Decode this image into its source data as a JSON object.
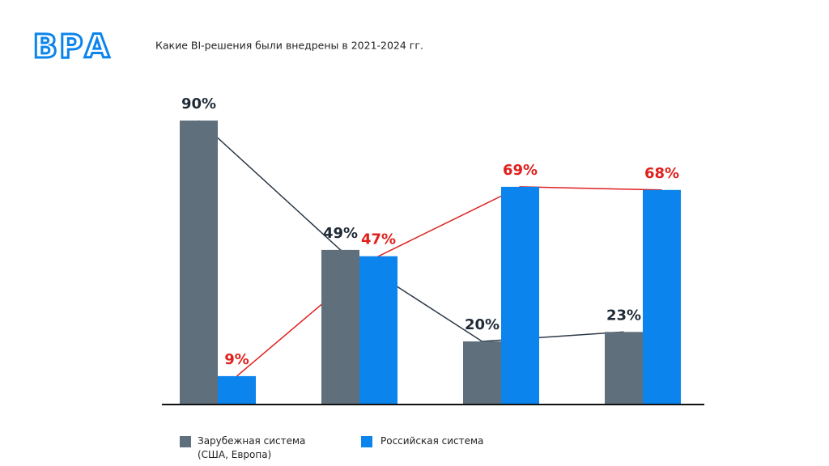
{
  "logo": "ВРА",
  "chart_data": {
    "type": "bar",
    "title": "Какие BI-решения были внедрены в 2021-2024 гг.",
    "categories": [
      null,
      null,
      null,
      null
    ],
    "ylim": [
      0,
      90
    ],
    "series": [
      {
        "name": "Зарубежная система (США, Европа)",
        "color": "#5f6f7c",
        "line_color": "#2b3846",
        "label_color": "#1e2a36",
        "values": [
          90,
          49,
          20,
          23
        ],
        "value_labels": [
          "90%",
          "49%",
          "20%",
          "23%"
        ]
      },
      {
        "name": "Российская система",
        "color": "#0b84ee",
        "line_color": "#e02020",
        "label_color": "#e0201c",
        "values": [
          9,
          47,
          69,
          68
        ],
        "value_labels": [
          "9%",
          "47%",
          "69%",
          "68%"
        ]
      }
    ]
  }
}
